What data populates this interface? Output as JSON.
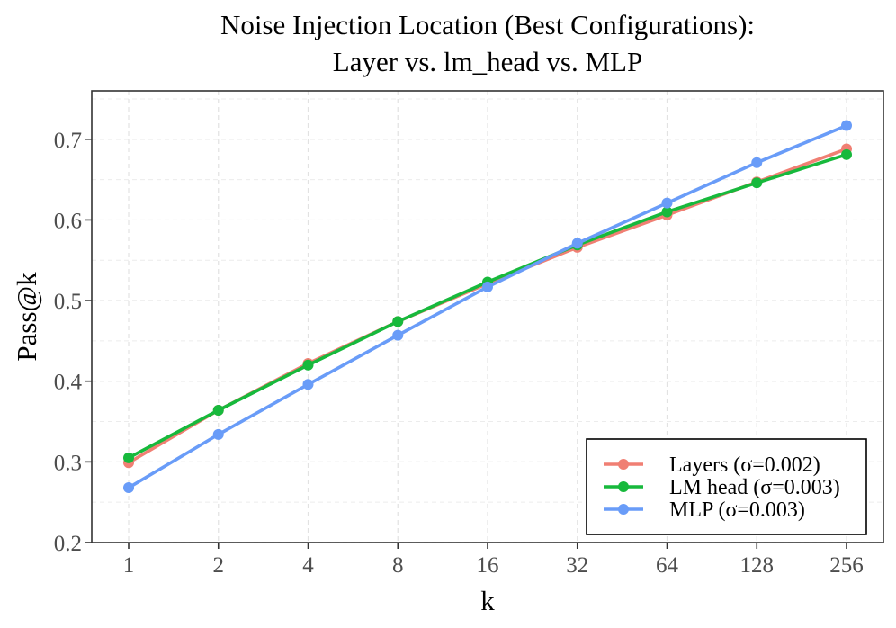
{
  "chart_data": {
    "type": "line",
    "title": "Noise Injection Location (Best Configurations):",
    "subtitle": "Layer vs. lm_head vs. MLP",
    "xlabel": "k",
    "ylabel": "Pass@k",
    "x": [
      "1",
      "2",
      "4",
      "8",
      "16",
      "32",
      "64",
      "128",
      "256"
    ],
    "ylim": [
      0.2,
      0.76
    ],
    "yticks": [
      "0.2",
      "0.3",
      "0.4",
      "0.5",
      "0.6",
      "0.7"
    ],
    "grid": true,
    "legend_position": "bottom-right",
    "series": [
      {
        "name": "Layers (σ=0.002)",
        "color": "#f07f73",
        "values": [
          0.299,
          0.364,
          0.422,
          0.474,
          0.521,
          0.566,
          0.606,
          0.647,
          0.688
        ]
      },
      {
        "name": "LM head (σ=0.003)",
        "color": "#17b93c",
        "values": [
          0.305,
          0.364,
          0.42,
          0.474,
          0.523,
          0.569,
          0.61,
          0.646,
          0.681
        ]
      },
      {
        "name": "MLP (σ=0.003)",
        "color": "#699cf8",
        "values": [
          0.268,
          0.334,
          0.396,
          0.457,
          0.517,
          0.571,
          0.621,
          0.671,
          0.717
        ]
      }
    ]
  }
}
